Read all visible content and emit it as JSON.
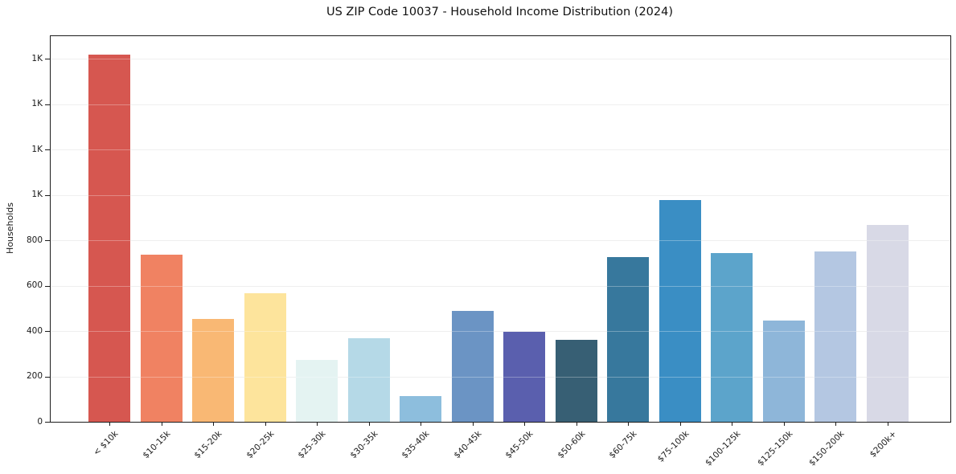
{
  "page": {
    "background_color": "#ffffff"
  },
  "chart_data": {
    "type": "bar",
    "title": "US ZIP Code 10037 - Household Income Distribution (2024)",
    "xlabel": "",
    "ylabel": "Households",
    "categories": [
      "< $10k",
      "$10-15k",
      "$15-20k",
      "$20-25k",
      "$25-30k",
      "$30-35k",
      "$35-40k",
      "$40-45k",
      "$45-50k",
      "$50-60k",
      "$60-75k",
      "$75-100k",
      "$100-125k",
      "$125-150k",
      "$150-200k",
      "$200k+"
    ],
    "values": [
      1617,
      738,
      452,
      568,
      272,
      367,
      112,
      490,
      395,
      360,
      727,
      977,
      742,
      448,
      752,
      866
    ],
    "bar_colors": [
      "#d65750",
      "#f08262",
      "#f9b874",
      "#fde49c",
      "#e4f3f2",
      "#b5d9e7",
      "#8dbedd",
      "#6b94c4",
      "#5a5fae",
      "#375f74",
      "#37789d",
      "#3a8ec4",
      "#5ca4cb",
      "#8eb6d9",
      "#b4c7e2",
      "#d8d9e6"
    ],
    "ylim": [
      0,
      1700
    ],
    "yticks": [
      {
        "value": 0,
        "label": "0"
      },
      {
        "value": 200,
        "label": "200"
      },
      {
        "value": 400,
        "label": "400"
      },
      {
        "value": 600,
        "label": "600"
      },
      {
        "value": 800,
        "label": "800"
      },
      {
        "value": 1000,
        "label": "1K"
      },
      {
        "value": 1200,
        "label": "1K"
      },
      {
        "value": 1400,
        "label": "1K"
      },
      {
        "value": 1600,
        "label": "1K"
      }
    ],
    "grid": "horizontal",
    "legend_position": "none",
    "xtick_rotation_deg": 45
  }
}
